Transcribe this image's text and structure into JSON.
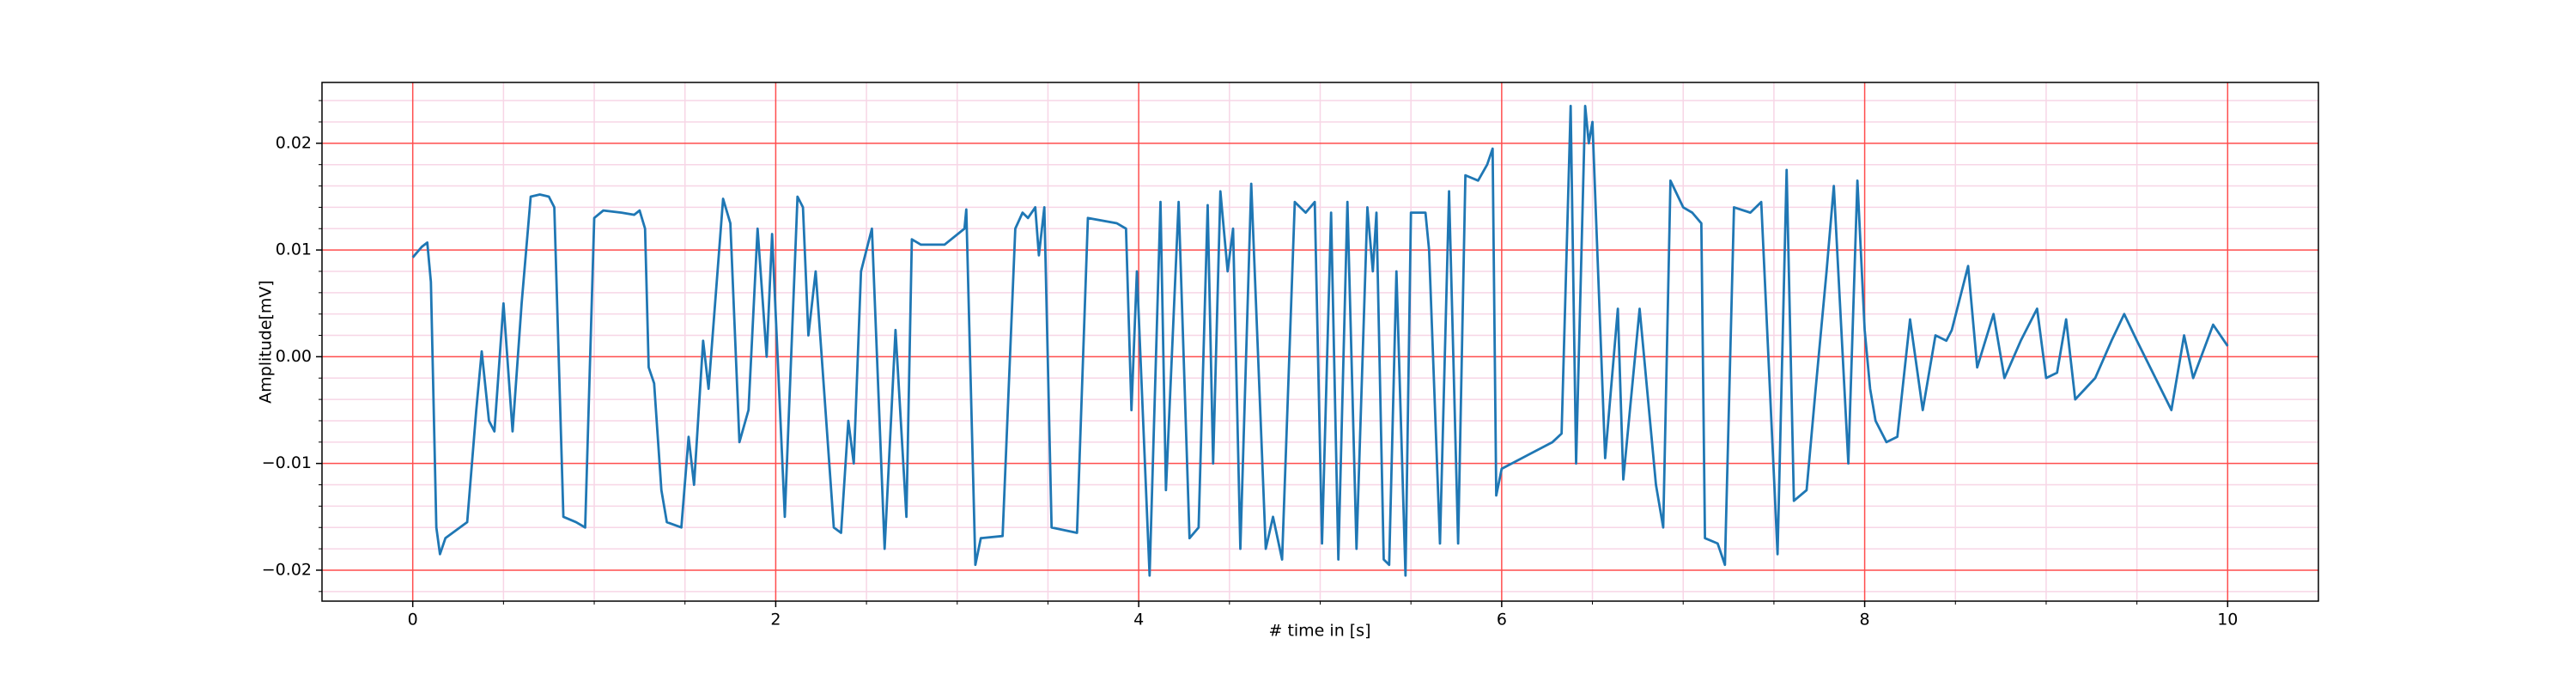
{
  "chart_data": {
    "type": "line",
    "xlabel": "# time in [s]",
    "ylabel": "Amplitude[mV]",
    "x": [
      0,
      0.05,
      0.08,
      0.1,
      0.13,
      0.15,
      0.18,
      0.3,
      0.35,
      0.38,
      0.42,
      0.45,
      0.5,
      0.55,
      0.6,
      0.65,
      0.7,
      0.75,
      0.78,
      0.83,
      0.9,
      0.95,
      1.0,
      1.05,
      1.15,
      1.22,
      1.25,
      1.28,
      1.3,
      1.33,
      1.37,
      1.4,
      1.48,
      1.52,
      1.55,
      1.6,
      1.63,
      1.71,
      1.75,
      1.8,
      1.85,
      1.9,
      1.95,
      1.98,
      2.05,
      2.12,
      2.15,
      2.18,
      2.22,
      2.32,
      2.36,
      2.4,
      2.43,
      2.47,
      2.53,
      2.6,
      2.66,
      2.72,
      2.75,
      2.8,
      2.93,
      3.04,
      3.05,
      3.1,
      3.13,
      3.25,
      3.32,
      3.36,
      3.39,
      3.43,
      3.45,
      3.48,
      3.52,
      3.66,
      3.72,
      3.88,
      3.93,
      3.96,
      3.99,
      4.06,
      4.12,
      4.15,
      4.22,
      4.28,
      4.33,
      4.38,
      4.41,
      4.45,
      4.49,
      4.52,
      4.56,
      4.62,
      4.7,
      4.74,
      4.79,
      4.86,
      4.92,
      4.97,
      5.01,
      5.06,
      5.1,
      5.15,
      5.2,
      5.26,
      5.29,
      5.31,
      5.35,
      5.38,
      5.42,
      5.47,
      5.5,
      5.58,
      5.6,
      5.66,
      5.71,
      5.76,
      5.8,
      5.87,
      5.92,
      5.95,
      5.97,
      6.0,
      6.28,
      6.33,
      6.38,
      6.41,
      6.46,
      6.48,
      6.5,
      6.57,
      6.64,
      6.67,
      6.76,
      6.85,
      6.89,
      6.93,
      7.0,
      7.05,
      7.1,
      7.12,
      7.19,
      7.23,
      7.28,
      7.37,
      7.43,
      7.52,
      7.57,
      7.61,
      7.68,
      7.73,
      7.79,
      7.83,
      7.91,
      7.96,
      8.0,
      8.03,
      8.06,
      8.12,
      8.18,
      8.25,
      8.32,
      8.39,
      8.45,
      8.48,
      8.57,
      8.62,
      8.71,
      8.77,
      8.86,
      8.95,
      9.0,
      9.06,
      9.11,
      9.16,
      9.27,
      9.36,
      9.43,
      9.5,
      9.69,
      9.76,
      9.81,
      9.92,
      10.0
    ],
    "series": [
      {
        "name": "Amplitude",
        "color": "#1f77b4",
        "values": [
          0.0093,
          0.0103,
          0.0107,
          0.007,
          -0.016,
          -0.0185,
          -0.017,
          -0.0155,
          -0.005,
          0.0005,
          -0.006,
          -0.007,
          0.005,
          -0.007,
          0.005,
          0.015,
          0.0152,
          0.015,
          0.014,
          -0.015,
          -0.0155,
          -0.016,
          0.013,
          0.0137,
          0.0135,
          0.0133,
          0.0137,
          0.012,
          -0.001,
          -0.0025,
          -0.0125,
          -0.0155,
          -0.016,
          -0.0075,
          -0.012,
          0.0015,
          -0.003,
          0.0148,
          0.0125,
          -0.008,
          -0.005,
          0.012,
          0.0,
          0.0115,
          -0.015,
          0.015,
          0.014,
          0.002,
          0.008,
          -0.016,
          -0.0165,
          -0.006,
          -0.01,
          0.008,
          0.012,
          -0.018,
          0.0025,
          -0.015,
          0.011,
          0.0105,
          0.0105,
          0.012,
          0.0138,
          -0.0195,
          -0.017,
          -0.0168,
          0.012,
          0.0135,
          0.013,
          0.014,
          0.0095,
          0.014,
          -0.016,
          -0.0165,
          0.013,
          0.0125,
          0.012,
          -0.005,
          0.008,
          -0.0205,
          0.0145,
          -0.0125,
          0.0145,
          -0.017,
          -0.016,
          0.0142,
          -0.01,
          0.0155,
          0.008,
          0.012,
          -0.018,
          0.0162,
          -0.018,
          -0.015,
          -0.019,
          0.0145,
          0.0135,
          0.0145,
          -0.0175,
          0.0135,
          -0.019,
          0.0145,
          -0.018,
          0.014,
          0.008,
          0.0135,
          -0.019,
          -0.0195,
          0.008,
          -0.0205,
          0.0135,
          0.0135,
          0.01,
          -0.0175,
          0.0155,
          -0.0175,
          0.017,
          0.0165,
          0.018,
          0.0195,
          -0.013,
          -0.0105,
          -0.008,
          -0.0072,
          0.0235,
          -0.01,
          0.0235,
          0.02,
          0.022,
          -0.0095,
          0.0045,
          -0.0115,
          0.0045,
          -0.012,
          -0.016,
          0.0165,
          0.014,
          0.0135,
          0.0125,
          -0.017,
          -0.0175,
          -0.0195,
          0.014,
          0.0135,
          0.0145,
          -0.0185,
          0.0175,
          -0.0135,
          -0.0125,
          -0.003,
          0.008,
          0.016,
          -0.01,
          0.0165,
          0.0025,
          -0.003,
          -0.006,
          -0.008,
          -0.0075,
          0.0035,
          -0.005,
          0.002,
          0.0015,
          0.0025,
          0.0085,
          -0.001,
          0.004,
          -0.002,
          0.0015,
          0.0045,
          -0.002,
          -0.0015,
          0.0035,
          -0.004,
          -0.002,
          0.0015,
          0.004,
          0.0015,
          -0.005,
          0.002,
          -0.002,
          0.003,
          0.001
        ]
      }
    ],
    "xlim": [
      -0.5,
      10.5
    ],
    "ylim": [
      -0.0229,
      0.0257
    ],
    "xticks": [
      0,
      2,
      4,
      6,
      8,
      10
    ],
    "yticks": [
      {
        "value": -0.02,
        "label": "−0.02"
      },
      {
        "value": -0.01,
        "label": "−0.01"
      },
      {
        "value": 0,
        "label": "0.00"
      },
      0.01,
      0.02
    ],
    "minor_xticks": [
      0.5,
      1,
      1.5,
      2.5,
      3,
      3.5,
      4.5,
      5,
      5.5,
      6.5,
      7,
      7.5,
      8.5,
      9,
      9.5
    ],
    "minor_yticks": [
      -0.022,
      -0.018,
      -0.016,
      -0.014,
      -0.012,
      -0.008,
      -0.006,
      -0.004,
      -0.002,
      0.002,
      0.004,
      0.006,
      0.008,
      0.012,
      0.014,
      0.016,
      0.018,
      0.022,
      0.024
    ],
    "grid": true,
    "grid_color": "#ff4d4d",
    "minor_grid_color": "#f7d6e6"
  }
}
